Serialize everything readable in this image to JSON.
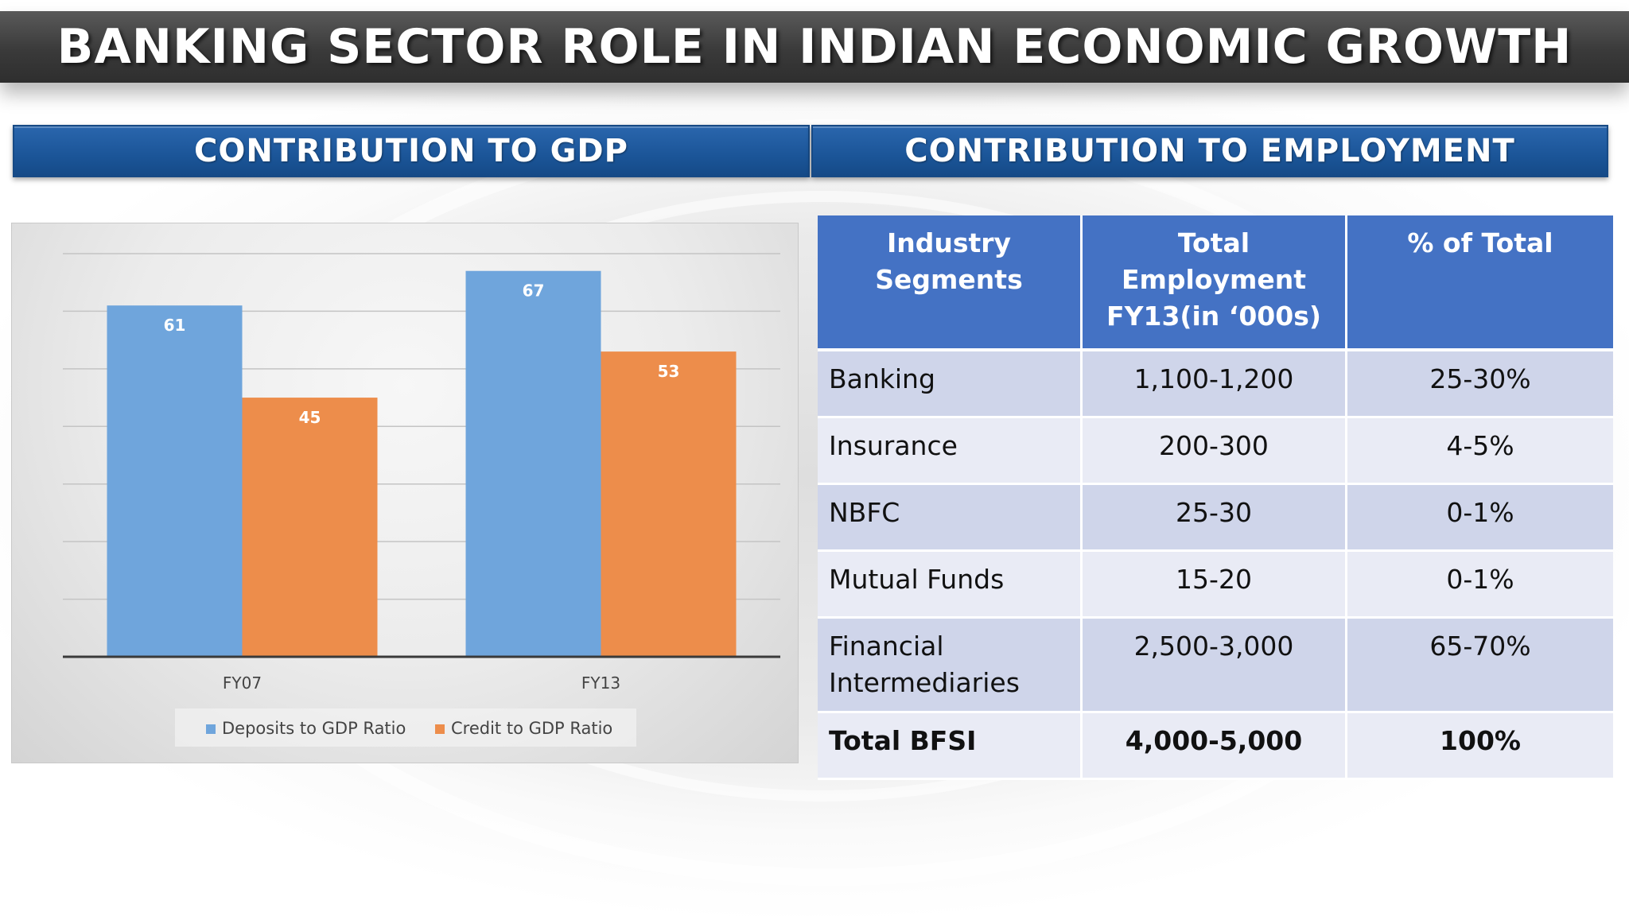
{
  "title": "BANKING SECTOR ROLE IN INDIAN ECONOMIC GROWTH",
  "sections": {
    "gdp": "CONTRIBUTION TO GDP",
    "employment": "CONTRIBUTION TO EMPLOYMENT"
  },
  "colors": {
    "deposits": "#6fa5dc",
    "credit": "#ed8d4b",
    "header_blue": "#4472c4"
  },
  "chart_data": {
    "type": "bar",
    "categories": [
      "FY07",
      "FY13"
    ],
    "series": [
      {
        "name": "Deposits to GDP Ratio",
        "values": [
          61,
          67
        ]
      },
      {
        "name": "Credit to GDP Ratio",
        "values": [
          45,
          53
        ]
      }
    ],
    "ylim": [
      0,
      70
    ],
    "gridlines": true,
    "legend": "bottom",
    "title": "",
    "xlabel": "",
    "ylabel": ""
  },
  "table": {
    "headers": [
      "Industry Segments",
      "Total Employment FY13(in ‘000s)",
      "% of Total"
    ],
    "rows": [
      {
        "segment": "Banking",
        "employment": "1,100-1,200",
        "percent": "25-30%"
      },
      {
        "segment": "Insurance",
        "employment": "200-300",
        "percent": "4-5%"
      },
      {
        "segment": "NBFC",
        "employment": "25-30",
        "percent": "0-1%"
      },
      {
        "segment": "Mutual Funds",
        "employment": "15-20",
        "percent": "0-1%"
      },
      {
        "segment": "Financial Intermediaries",
        "employment": "2,500-3,000",
        "percent": "65-70%"
      },
      {
        "segment": "Total BFSI",
        "employment": "4,000-5,000",
        "percent": "100%"
      }
    ]
  }
}
